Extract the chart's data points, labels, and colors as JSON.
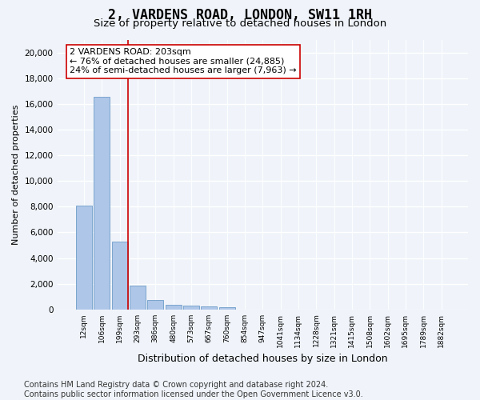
{
  "title1": "2, VARDENS ROAD, LONDON, SW11 1RH",
  "title2": "Size of property relative to detached houses in London",
  "xlabel": "Distribution of detached houses by size in London",
  "ylabel": "Number of detached properties",
  "bar_values": [
    8100,
    16600,
    5300,
    1850,
    700,
    370,
    280,
    200,
    170,
    0,
    0,
    0,
    0,
    0,
    0,
    0,
    0,
    0,
    0,
    0,
    0
  ],
  "categories": [
    "12sqm",
    "106sqm",
    "199sqm",
    "293sqm",
    "386sqm",
    "480sqm",
    "573sqm",
    "667sqm",
    "760sqm",
    "854sqm",
    "947sqm",
    "1041sqm",
    "1134sqm",
    "1228sqm",
    "1321sqm",
    "1415sqm",
    "1508sqm",
    "1602sqm",
    "1695sqm",
    "1789sqm",
    "1882sqm"
  ],
  "bar_color": "#aec6e8",
  "bar_edge_color": "#5a8fc0",
  "vline_x": 2,
  "vline_color": "#cc0000",
  "annotation_text": "2 VARDENS ROAD: 203sqm\n← 76% of detached houses are smaller (24,885)\n24% of semi-detached houses are larger (7,963) →",
  "annotation_box_color": "#ffffff",
  "annotation_box_edge": "#cc0000",
  "ylim": [
    0,
    21000
  ],
  "yticks": [
    0,
    2000,
    4000,
    6000,
    8000,
    10000,
    12000,
    14000,
    16000,
    18000,
    20000
  ],
  "footnote": "Contains HM Land Registry data © Crown copyright and database right 2024.\nContains public sector information licensed under the Open Government Licence v3.0.",
  "bg_color": "#f0f4fa",
  "grid_color": "#ffffff",
  "title1_fontsize": 12,
  "title2_fontsize": 9.5,
  "annot_fontsize": 8,
  "footnote_fontsize": 7
}
